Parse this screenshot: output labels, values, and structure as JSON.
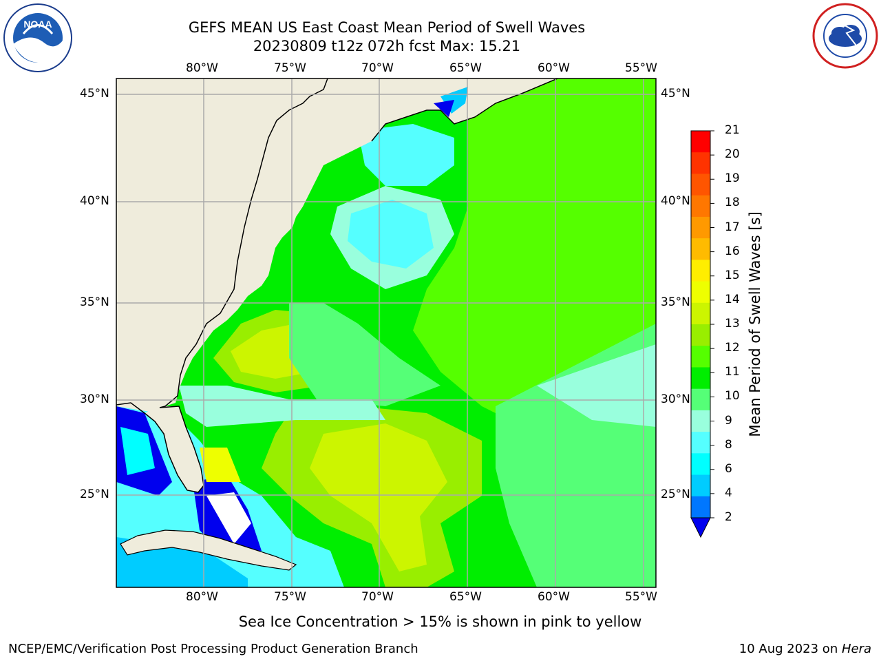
{
  "title_line1": "GEFS MEAN US East Coast Mean Period of Swell Waves",
  "title_line2": "20230809 t12z 072h fcst   Max: 15.21",
  "logos": {
    "left": "noaa-logo",
    "right": "nws-logo"
  },
  "lon_labels": [
    "80°W",
    "75°W",
    "70°W",
    "65°W",
    "60°W",
    "55°W"
  ],
  "lat_labels": [
    "45°N",
    "40°N",
    "35°N",
    "30°N",
    "25°N"
  ],
  "colorbar": {
    "label": "Mean Period of Swell Waves [s]",
    "ticks": [
      "21",
      "20",
      "19",
      "18",
      "17",
      "16",
      "15",
      "14",
      "13",
      "12",
      "11",
      "10",
      "9",
      "8",
      "6",
      "4",
      "2"
    ],
    "colors": [
      "#ff0000",
      "#ff3300",
      "#ff5500",
      "#ff7700",
      "#ff9900",
      "#ffbb00",
      "#ffee00",
      "#eeff00",
      "#ccf500",
      "#99ee00",
      "#55ff00",
      "#00ee00",
      "#55ff77",
      "#99ffdd",
      "#55ffff",
      "#00ffff",
      "#00ccff",
      "#0077ff",
      "#0000ee"
    ]
  },
  "note": "Sea Ice Concentration > 15% is shown in pink to yellow",
  "footer_left": "NCEP/EMC/Verification Post Processing Product Generation Branch",
  "footer_right_date": "10 Aug 2023 on ",
  "footer_right_host": "Hera"
}
